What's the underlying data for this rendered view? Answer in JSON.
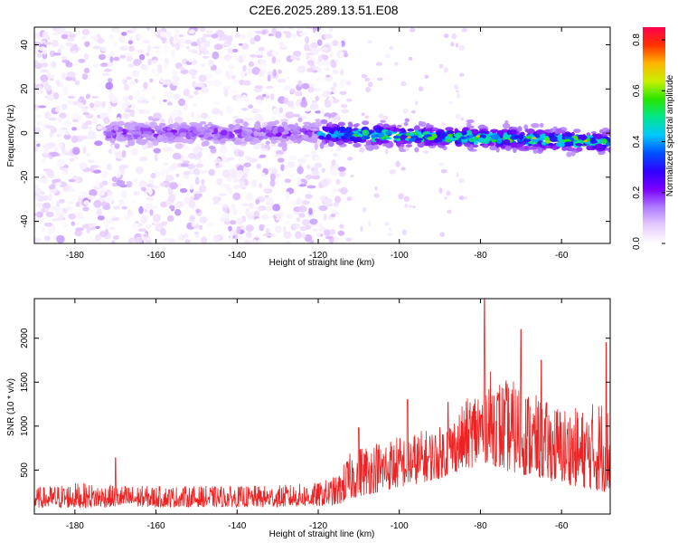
{
  "title": "C2E6.2025.289.13.51.E08",
  "chart_data": [
    {
      "type": "heatmap",
      "name": "spectrogram",
      "xlabel": "Height of straight line (km)",
      "ylabel": "Frequency (Hz)",
      "xlim": [
        -190,
        -48
      ],
      "ylim": [
        -50,
        48
      ],
      "xticks": [
        -180,
        -160,
        -140,
        -120,
        -100,
        -80,
        -60
      ],
      "yticks": [
        -40,
        -20,
        0,
        20,
        40
      ],
      "colorbar": {
        "label": "Normalized spectral amplitude",
        "range": [
          0,
          0.85
        ],
        "ticks": [
          "0.0",
          "0.2",
          "0.4",
          "0.6",
          "0.8"
        ],
        "tick_values": [
          0,
          0.2,
          0.4,
          0.6,
          0.8
        ],
        "colors": [
          "#ffffff",
          "#e6ccff",
          "#b07cff",
          "#7a00ff",
          "#3000ff",
          "#0050ff",
          "#00c8ff",
          "#00e68c",
          "#28e600",
          "#c8f000",
          "#ffb400",
          "#ff3200",
          "#ff0050"
        ]
      },
      "features": {
        "noise_extent_km": [
          -190,
          -113
        ],
        "signal_band_center_hz": 0,
        "signal_band_start_km": -172,
        "strong_signal_start_km": -120,
        "peak_amplitude_km": [
          -98,
          -80,
          -68,
          -53
        ],
        "band_drift_hz": [
          0,
          -4
        ]
      }
    },
    {
      "type": "line",
      "name": "snr",
      "xlabel": "Height of straight line (km)",
      "ylabel": "SNR (10 * v/v)",
      "xlim": [
        -190,
        -48
      ],
      "ylim": [
        0,
        2450
      ],
      "xticks": [
        -180,
        -160,
        -140,
        -120,
        -100,
        -80,
        -60
      ],
      "yticks": [
        500,
        1000,
        1500,
        2000
      ],
      "color": "#ee2222",
      "x": [
        -190,
        -180,
        -170,
        -160,
        -150,
        -140,
        -130,
        -120,
        -115,
        -113,
        -110,
        -105,
        -100,
        -95,
        -90,
        -85,
        -80,
        -78,
        -75,
        -70,
        -65,
        -60,
        -55,
        -50,
        -48
      ],
      "envelope_low": [
        70,
        70,
        80,
        80,
        80,
        80,
        80,
        90,
        100,
        150,
        200,
        250,
        300,
        350,
        400,
        500,
        550,
        600,
        500,
        450,
        400,
        350,
        300,
        250,
        250
      ],
      "envelope_high": [
        300,
        360,
        330,
        320,
        320,
        320,
        330,
        360,
        450,
        650,
        800,
        850,
        900,
        950,
        1000,
        1200,
        1550,
        1650,
        1550,
        1500,
        1300,
        1250,
        1200,
        1350,
        1200
      ],
      "peaks": [
        {
          "x": -170,
          "y": 640
        },
        {
          "x": -110,
          "y": 980
        },
        {
          "x": -98,
          "y": 1300
        },
        {
          "x": -88,
          "y": 1270
        },
        {
          "x": -79,
          "y": 2450
        },
        {
          "x": -70,
          "y": 2100
        },
        {
          "x": -65,
          "y": 1750
        },
        {
          "x": -49,
          "y": 1950
        }
      ]
    }
  ]
}
